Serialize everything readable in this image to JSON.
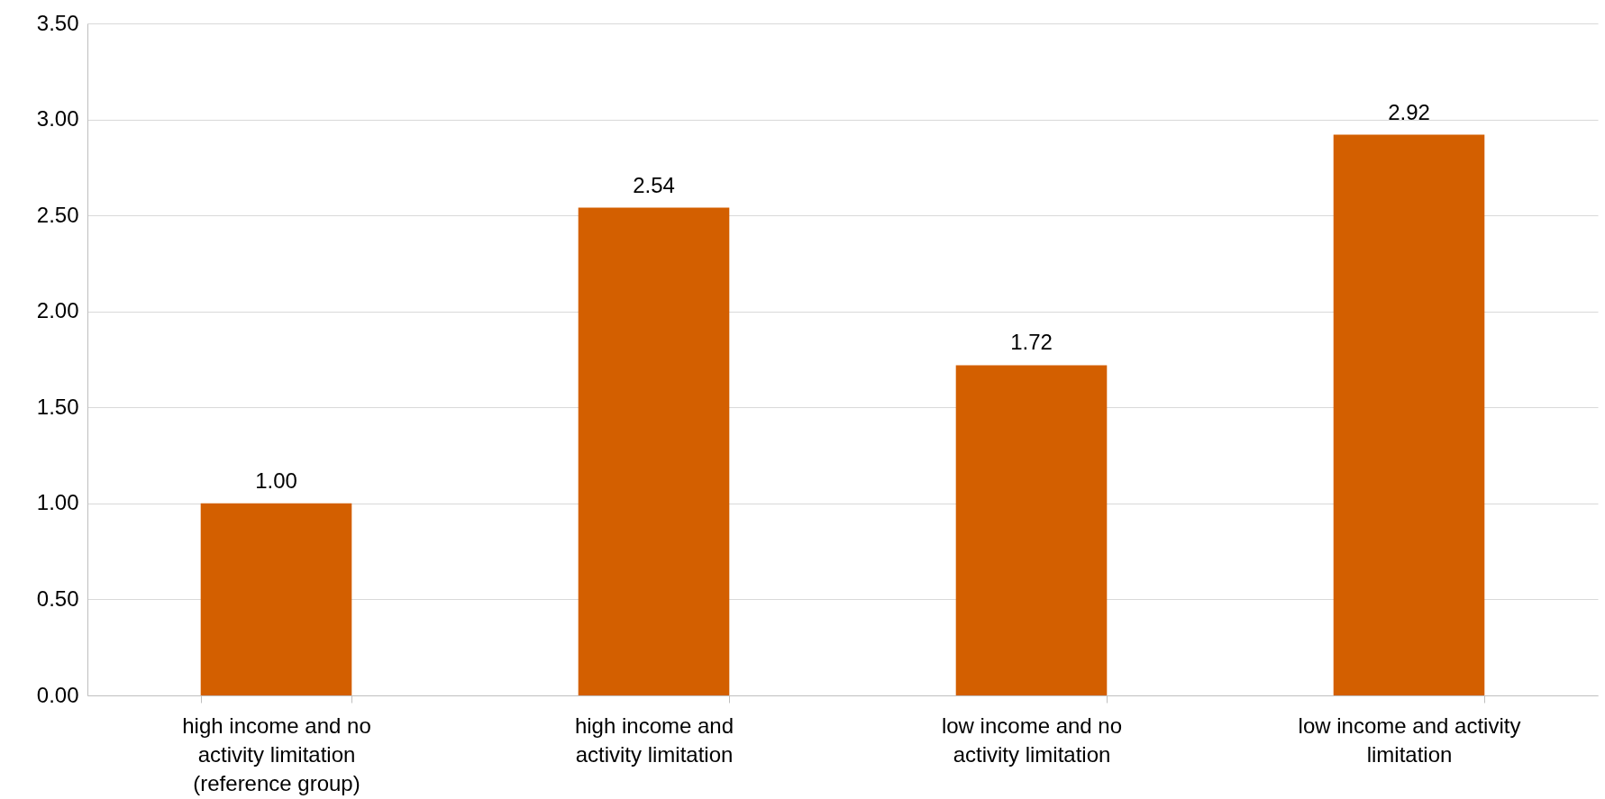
{
  "chart_data": {
    "type": "bar",
    "categories": [
      "high income and no activity limitation (reference group)",
      "high income and activity limitation",
      "low income and no activity limitation",
      "low income and activity limitation"
    ],
    "values": [
      1.0,
      2.54,
      1.72,
      2.92
    ],
    "color": "#d35f00",
    "ylim": [
      0,
      3.5
    ],
    "yticks": [
      {
        "value": 0,
        "label": "0.00"
      },
      {
        "value": 0.5,
        "label": "0.50"
      },
      {
        "value": 1,
        "label": "1.00"
      },
      {
        "value": 1.5,
        "label": "1.50"
      },
      {
        "value": 2,
        "label": "2.00"
      },
      {
        "value": 2.5,
        "label": "2.50"
      },
      {
        "value": 3,
        "label": "3.00"
      },
      {
        "value": 3.5,
        "label": "3.50"
      }
    ],
    "grid": "y",
    "value_labels": [
      "1.00",
      "2.54",
      "1.72",
      "2.92"
    ]
  }
}
